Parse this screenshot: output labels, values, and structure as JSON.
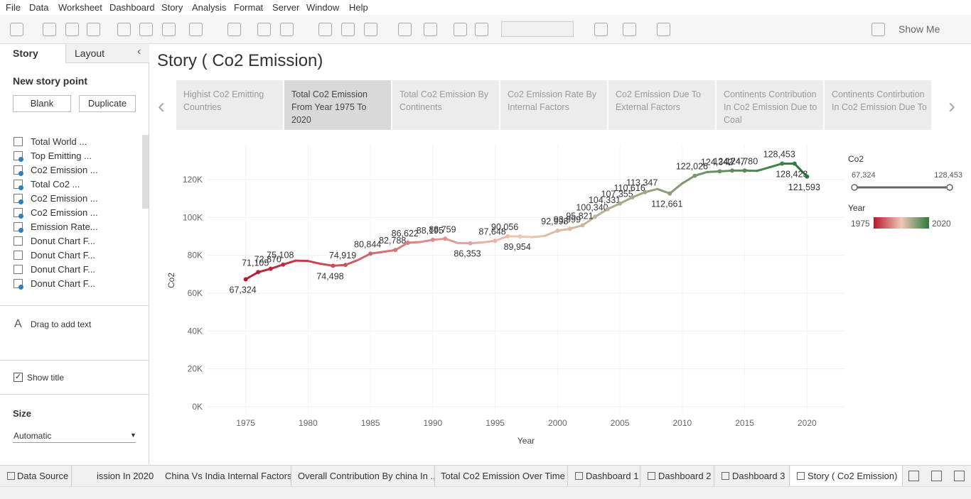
{
  "menu": [
    "File",
    "Data",
    "Worksheet",
    "Dashboard",
    "Story",
    "Analysis",
    "Format",
    "Server",
    "Window",
    "Help"
  ],
  "toolbar": {
    "show_me": "Show Me"
  },
  "sidebar": {
    "tabs": [
      "Story",
      "Layout"
    ],
    "new_story_point": "New story point",
    "buttons": [
      "Blank",
      "Duplicate"
    ],
    "sheets": [
      "Total World ...",
      "Top Emitting ...",
      "Co2 Emission ...",
      "Total Co2 ...",
      "Co2 Emission ...",
      "Co2 Emission ...",
      "Emission Rate...",
      "Donut Chart F...",
      "Donut Chart F...",
      "Donut Chart F...",
      "Donut Chart F..."
    ],
    "drag_text": "Drag to add text",
    "show_title": "Show title",
    "size_label": "Size",
    "size_value": "Automatic"
  },
  "story": {
    "title": "Story ( Co2 Emission)",
    "points": [
      "Highist Co2 Emitting Countries",
      "Total Co2 Emission From Year 1975 To 2020",
      "Total Co2 Emission By Continents",
      "Co2 Emission Rate By Internal Factors",
      "Co2 Emission Due To External Factors",
      "Continents Contribution In Co2 Emission  Due to Coal",
      "Continents Contirbution In Co2 Emission  Due To"
    ]
  },
  "chart_data": {
    "type": "line",
    "x_label": "Year",
    "y_label": "Co2",
    "x": [
      1975,
      1976,
      1977,
      1978,
      1979,
      1980,
      1981,
      1982,
      1983,
      1984,
      1985,
      1986,
      1987,
      1988,
      1989,
      1990,
      1991,
      1992,
      1993,
      1994,
      1995,
      1996,
      1997,
      1998,
      1999,
      2000,
      2001,
      2002,
      2003,
      2004,
      2005,
      2006,
      2007,
      2008,
      2009,
      2010,
      2011,
      2012,
      2013,
      2014,
      2015,
      2016,
      2017,
      2018,
      2019,
      2020
    ],
    "values": [
      67324,
      71105,
      72870,
      75108,
      77200,
      77000,
      75500,
      74498,
      74919,
      77500,
      80844,
      81800,
      82788,
      86622,
      87000,
      88195,
      88759,
      86500,
      86353,
      86800,
      87648,
      90056,
      89954,
      89600,
      90300,
      92998,
      93999,
      95821,
      100340,
      104331,
      107355,
      110616,
      113347,
      115000,
      112661,
      118000,
      122026,
      124000,
      124342,
      124747,
      124780,
      124600,
      126500,
      128453,
      128423,
      121593
    ],
    "value_labels": [
      "67,324",
      "71,105",
      "72,870",
      "75,108",
      null,
      null,
      null,
      "74,498",
      "74,919",
      null,
      "80,844",
      null,
      "82,788",
      "86,622",
      null,
      "88,195",
      "88,759",
      null,
      "86,353",
      null,
      "87,648",
      "90,056",
      "89,954",
      null,
      null,
      "92,998",
      "93,999",
      "95,821",
      "100,340",
      "104,331",
      "107,355",
      "110,616",
      "113,347",
      null,
      "112,661",
      null,
      "122,026",
      null,
      "124,342",
      "124,747",
      "124,780",
      null,
      null,
      "128,453",
      "128,423",
      "121,593"
    ],
    "colors": [
      "#b5172f",
      "#f2c6b6",
      "#2a7a3b"
    ],
    "xlim": [
      1972,
      2023
    ],
    "xticks": [
      1975,
      1980,
      1985,
      1990,
      1995,
      2000,
      2005,
      2010,
      2015,
      2020
    ],
    "ylim": [
      -3750,
      138000
    ],
    "yticks": [
      {
        "value": 0,
        "label": "0K"
      },
      {
        "value": 20000,
        "label": "20K"
      },
      {
        "value": 40000,
        "label": "40K"
      },
      {
        "value": 60000,
        "label": "60K"
      },
      {
        "value": 80000,
        "label": "80K"
      },
      {
        "value": 100000,
        "label": "100K"
      },
      {
        "value": 120000,
        "label": "120K"
      }
    ],
    "grid": true,
    "legend": {
      "size_title": "Co2",
      "size_range": [
        {
          "value": 67324,
          "label": "67,324"
        },
        {
          "value": 128453,
          "label": "128,453"
        }
      ],
      "color_title": "Year",
      "color_range": [
        1975,
        2020
      ]
    }
  },
  "bottom_tabs": [
    "Data Source",
    "ission In 2020",
    "China Vs India Internal Factors",
    "Overall Contribution By china In ...",
    "Total Co2 Emission Over Time",
    "Dashboard 1",
    "Dashboard 2",
    "Dashboard 3",
    "Story ( Co2 Emission)"
  ]
}
